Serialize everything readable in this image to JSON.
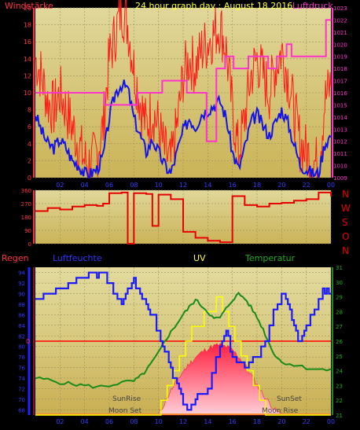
{
  "header": {
    "left": "Windstärke",
    "center": "24 hour graph day : August 18 2016",
    "right": "Luftdruck"
  },
  "directions": [
    "N",
    "W",
    "S",
    "O",
    "N"
  ],
  "labels_bottom": {
    "regen": "Regen",
    "luftfeuchte": "Luftfeuchte",
    "uv": "UV",
    "temperatur": "Temperatur",
    "zero": "0",
    "sunrise": "SunRise",
    "sunset": "SunSet",
    "moonset": "Moon Set",
    "moonrise": "Moon Rise"
  },
  "colors": {
    "background": "#000000",
    "plot_bg": "#d8c97a",
    "grid": "#8a8458",
    "header_text": "#ff3344",
    "title_text": "#ffff33",
    "pressure": "#ff33cc",
    "gust": "#ff1a1a",
    "wind": "#1414e6",
    "direction": "#e60000",
    "humidity": "#1a1aff",
    "uv": "#ffff00",
    "temperature": "#1a8a1a",
    "solar": "#ff3344",
    "rain": "#ff0000",
    "temp_axis": "#1a8a1a"
  },
  "chart_data": [
    {
      "type": "line",
      "name": "wind-pressure",
      "x_ticks": [
        "02",
        "04",
        "06",
        "08",
        "10",
        "12",
        "14",
        "16",
        "18",
        "20",
        "22",
        "00"
      ],
      "xlim": [
        0,
        24
      ],
      "ylim_left": [
        0,
        20
      ],
      "ylim_right": [
        1009,
        1023
      ],
      "y_ticks_left": [
        "0",
        "2",
        "4",
        "6",
        "8",
        "10",
        "12",
        "14",
        "16",
        "18",
        "20"
      ],
      "y_ticks_right": [
        "1009",
        "1010",
        "1011",
        "1012",
        "1013",
        "1014",
        "1015",
        "1016",
        "1017",
        "1018",
        "1019",
        "1020",
        "1021",
        "1022",
        "1023"
      ],
      "series": [
        {
          "key": "wind",
          "x": [
            0,
            0.5,
            1,
            1.5,
            2,
            2.5,
            3,
            3.5,
            4,
            4.5,
            5,
            5.5,
            6,
            6.5,
            7,
            7.5,
            8,
            8.5,
            9,
            9.5,
            10,
            10.5,
            11,
            11.5,
            12,
            12.5,
            13,
            13.5,
            14,
            14.5,
            15,
            15.5,
            16,
            16.5,
            17,
            17.5,
            18,
            18.5,
            19,
            19.5,
            20,
            20.5,
            21,
            21.5,
            22,
            22.5,
            23,
            23.5,
            24
          ],
          "values": [
            7.5,
            5.5,
            4,
            3.5,
            4.5,
            3.5,
            2,
            1.5,
            0.5,
            0.5,
            1,
            2.5,
            7,
            10,
            11,
            10.5,
            7,
            5,
            3,
            4.5,
            3,
            1.5,
            0.5,
            3,
            5.5,
            7,
            6,
            7.5,
            8,
            8.5,
            9,
            7,
            3,
            1,
            3.5,
            6.5,
            7.5,
            6,
            5,
            6.5,
            8,
            6.5,
            4,
            1.5,
            1,
            0.5,
            0.5,
            4,
            5
          ]
        },
        {
          "key": "gust",
          "x": [
            0,
            0.5,
            1,
            1.5,
            2,
            2.5,
            3,
            3.5,
            4,
            4.5,
            5,
            5.5,
            6,
            6.5,
            7,
            7.5,
            8,
            8.5,
            9,
            9.5,
            10,
            10.5,
            11,
            11.5,
            12,
            12.5,
            13,
            13.5,
            14,
            14.5,
            15,
            15.5,
            16,
            16.5,
            17,
            17.5,
            18,
            18.5,
            19,
            19.5,
            20,
            20.5,
            21,
            21.5,
            22,
            22.5,
            23,
            23.5,
            24
          ],
          "values": [
            14,
            12,
            9,
            8,
            10,
            8,
            6,
            4,
            2,
            1.5,
            3,
            6,
            14,
            17,
            20,
            18,
            13,
            9,
            6,
            8,
            6,
            3,
            1.5,
            6,
            12,
            14,
            13,
            15,
            16,
            17,
            18,
            15,
            8,
            3,
            7,
            12,
            14,
            12,
            10,
            13,
            15,
            12,
            8,
            4,
            3,
            2,
            1.5,
            9,
            11
          ]
        },
        {
          "key": "pressure",
          "x": [
            0,
            1.6,
            1.6,
            5.6,
            5.6,
            8.3,
            8.3,
            10.3,
            10.3,
            12.3,
            12.3,
            13.9,
            13.9,
            14.7,
            14.7,
            15.4,
            15.4,
            16.1,
            16.1,
            17.3,
            17.3,
            18.9,
            18.9,
            19.6,
            19.6,
            20.4,
            20.4,
            20.8,
            20.8,
            23.6,
            23.6,
            24
          ],
          "values": [
            1016,
            1016,
            1016,
            1016,
            1015,
            1015,
            1016,
            1016,
            1017,
            1017,
            1016,
            1016,
            1012,
            1012,
            1018,
            1018,
            1019,
            1019,
            1018,
            1018,
            1019,
            1019,
            1018,
            1018,
            1019,
            1019,
            1020,
            1020,
            1019,
            1019,
            1022,
            1022
          ]
        }
      ]
    },
    {
      "type": "line",
      "name": "wind-direction",
      "xlim": [
        0,
        24
      ],
      "ylim": [
        0,
        360
      ],
      "y_ticks": [
        "0",
        "90",
        "180",
        "270",
        "360"
      ],
      "series": [
        {
          "key": "direction",
          "x": [
            0,
            1,
            2,
            3,
            4,
            5,
            5.5,
            6,
            7,
            7.5,
            8,
            9,
            9.5,
            10,
            11,
            12,
            13,
            14,
            15,
            16,
            17,
            18,
            19,
            20,
            21,
            22,
            23,
            24
          ],
          "values": [
            220,
            240,
            230,
            250,
            260,
            255,
            270,
            340,
            345,
            0,
            340,
            335,
            120,
            330,
            300,
            80,
            40,
            20,
            10,
            320,
            260,
            250,
            270,
            275,
            290,
            300,
            345,
            320
          ]
        }
      ]
    },
    {
      "type": "line",
      "name": "rain-humidity-uv-temperature",
      "xlim": [
        0,
        24
      ],
      "ylim_humidity": [
        67,
        95
      ],
      "ylim_temperature": [
        21,
        31
      ],
      "y_ticks_humidity": [
        "68",
        "70",
        "72",
        "74",
        "76",
        "78",
        "80",
        "82",
        "84",
        "86",
        "88",
        "90",
        "92",
        "94"
      ],
      "y_ticks_temperature": [
        "21",
        "22",
        "23",
        "24",
        "25",
        "26",
        "27",
        "28",
        "29",
        "30",
        "31"
      ],
      "series": [
        {
          "key": "humidity",
          "x": [
            0,
            1,
            2,
            3,
            4,
            5,
            5.5,
            6,
            7,
            7.5,
            8,
            8.5,
            9,
            9.5,
            10,
            10.5,
            11,
            11.5,
            12,
            12.5,
            13,
            13.5,
            14,
            15,
            15.5,
            16,
            17,
            18,
            19,
            20,
            20.5,
            21,
            21.5,
            22,
            23,
            23.5,
            24
          ],
          "values": [
            89,
            90,
            91,
            92,
            93,
            94,
            94,
            92,
            88,
            91,
            92,
            90,
            88,
            86,
            83,
            79,
            76,
            73,
            69,
            68,
            70,
            71,
            72,
            80,
            83,
            78,
            76,
            78,
            84,
            90,
            88,
            84,
            81,
            84,
            89,
            91,
            90
          ]
        },
        {
          "key": "temperature",
          "x": [
            0,
            1,
            2,
            3,
            4,
            5,
            6,
            7,
            8,
            8.5,
            9,
            9.5,
            10,
            10.5,
            11,
            11.5,
            12,
            12.5,
            13,
            13.5,
            14,
            14.5,
            15,
            15.5,
            16,
            16.5,
            17,
            17.5,
            18,
            18.5,
            19,
            19.5,
            20,
            21,
            22,
            23,
            24
          ],
          "values": [
            23.5,
            23.4,
            23.2,
            23.1,
            23,
            22.9,
            23,
            23.2,
            23.3,
            23.6,
            24,
            24.6,
            25.2,
            26,
            26.6,
            27.2,
            27.8,
            28.3,
            28.8,
            28.4,
            28,
            27.5,
            27.6,
            28.2,
            28.8,
            29.2,
            28.9,
            28.3,
            27.6,
            26.8,
            25.8,
            25,
            24.6,
            24.4,
            24.2,
            24.1,
            24
          ]
        },
        {
          "key": "uv",
          "x": [
            0,
            9.8,
            10.2,
            10.7,
            11.2,
            11.7,
            12.2,
            12.7,
            13.2,
            13.7,
            14.2,
            14.7,
            15.2,
            15.7,
            16.2,
            16.7,
            17.2,
            17.7,
            18.2,
            18.7,
            24
          ],
          "values": [
            0,
            0,
            1,
            2,
            3,
            4,
            5,
            6,
            6,
            7,
            7,
            8,
            7,
            6,
            5,
            4,
            3,
            2,
            1,
            0,
            0
          ]
        },
        {
          "key": "solar",
          "x": [
            10,
            10.5,
            11,
            11.5,
            12,
            12.5,
            13,
            13.5,
            14,
            14.5,
            15,
            15.5,
            16,
            16.5,
            17,
            17.5,
            18,
            18.5,
            19,
            19.5,
            20
          ],
          "values": [
            0,
            1.5,
            3,
            4.2,
            5.4,
            6.3,
            7.1,
            7.7,
            8.2,
            8.5,
            8.6,
            8.4,
            8,
            7.2,
            6.2,
            5,
            3.7,
            2.5,
            1.5,
            0.6,
            0
          ]
        }
      ],
      "rain_zero_line": 0,
      "uv_range": [
        0,
        10
      ],
      "solar_range": [
        0,
        10
      ]
    }
  ]
}
